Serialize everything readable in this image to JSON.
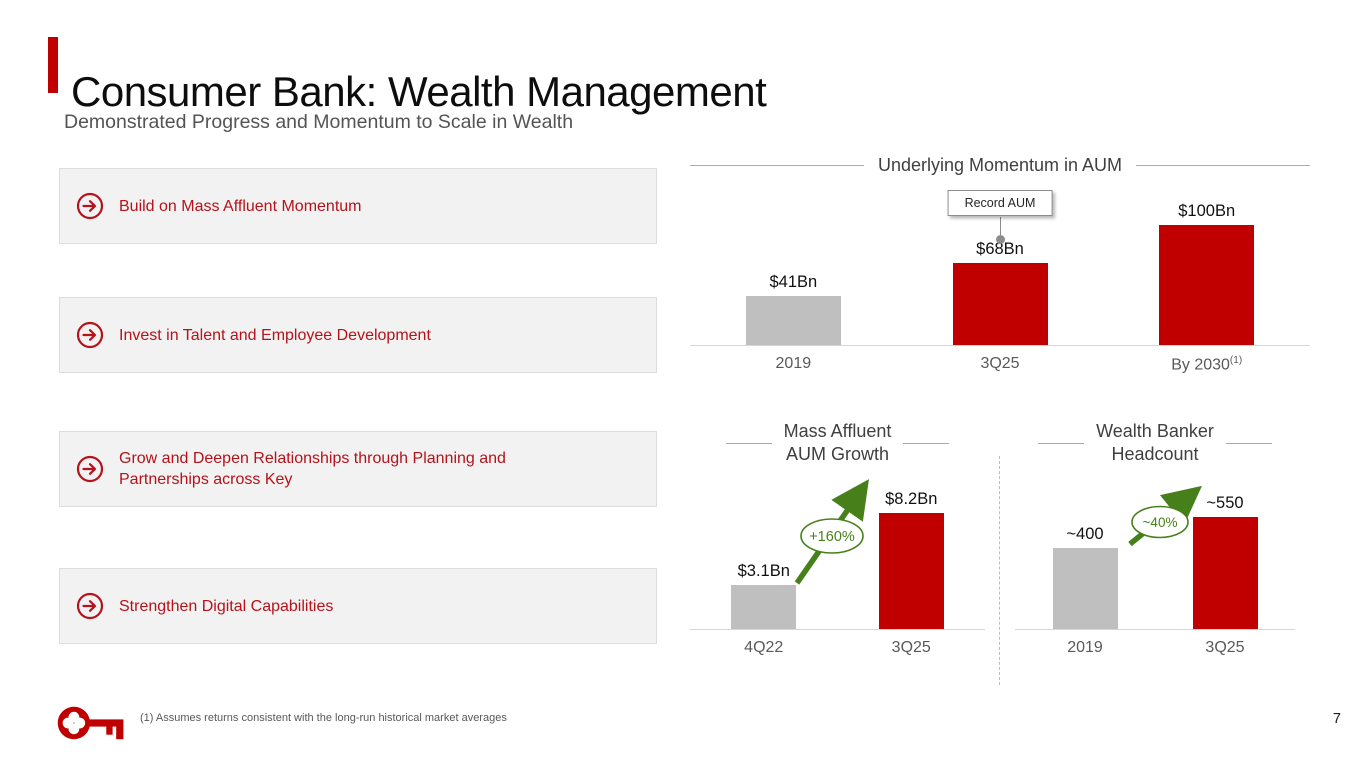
{
  "slide": {
    "title": "Consumer Bank: Wealth Management",
    "subtitle": "Demonstrated Progress and Momentum to Scale in Wealth",
    "footnote": "(1) Assumes returns consistent with the long-run historical market averages",
    "page_number": "7",
    "logo": "keybank-key-logo"
  },
  "colors": {
    "bar_red": "#C00000",
    "bar_gray": "#BFBFBF",
    "accent_red": "#B5121B",
    "green": "#47801A"
  },
  "strategy_items": [
    {
      "icon": "arrow-right-circle-icon",
      "label": "Build on Mass Affluent Momentum"
    },
    {
      "icon": "arrow-right-circle-icon",
      "label": "Invest in Talent and Employee Development"
    },
    {
      "icon": "arrow-right-circle-icon",
      "label": "Grow and Deepen Relationships through Planning and Partnerships across Key"
    },
    {
      "icon": "arrow-right-circle-icon",
      "label": "Strengthen Digital Capabilities"
    }
  ],
  "chart_data": [
    {
      "id": "underlying-momentum-in-aum",
      "type": "bar",
      "title": "Underlying Momentum in AUM",
      "categories": [
        "2019",
        "3Q25",
        "By 2030"
      ],
      "category_superscripts": [
        "",
        "",
        "(1)"
      ],
      "values": [
        41,
        68,
        100
      ],
      "value_labels": [
        "$41Bn",
        "$68Bn",
        "$100Bn"
      ],
      "unit": "$Bn AUM",
      "bar_colors": [
        "gray",
        "red",
        "red"
      ],
      "annotation": {
        "text": "Record AUM",
        "target_category": "3Q25"
      },
      "ylim": [
        0,
        110
      ],
      "grid": false
    },
    {
      "id": "mass-affluent-aum-growth",
      "type": "bar",
      "title": "Mass Affluent AUM Growth",
      "title_lines": [
        "Mass Affluent",
        "AUM Growth"
      ],
      "categories": [
        "4Q22",
        "3Q25"
      ],
      "values": [
        3.1,
        8.2
      ],
      "value_labels": [
        "$3.1Bn",
        "$8.2Bn"
      ],
      "unit": "$Bn AUM",
      "bar_colors": [
        "gray",
        "red"
      ],
      "growth_annotation": "+160%",
      "ylim": [
        0,
        9
      ],
      "grid": false
    },
    {
      "id": "wealth-banker-headcount",
      "type": "bar",
      "title": "Wealth Banker Headcount",
      "title_lines": [
        "Wealth Banker",
        "Headcount"
      ],
      "categories": [
        "2019",
        "3Q25"
      ],
      "values": [
        400,
        550
      ],
      "value_labels": [
        "~400",
        "~550"
      ],
      "unit": "headcount",
      "bar_colors": [
        "gray",
        "red"
      ],
      "growth_annotation": "~40%",
      "ylim": [
        0,
        620
      ],
      "grid": false
    }
  ]
}
